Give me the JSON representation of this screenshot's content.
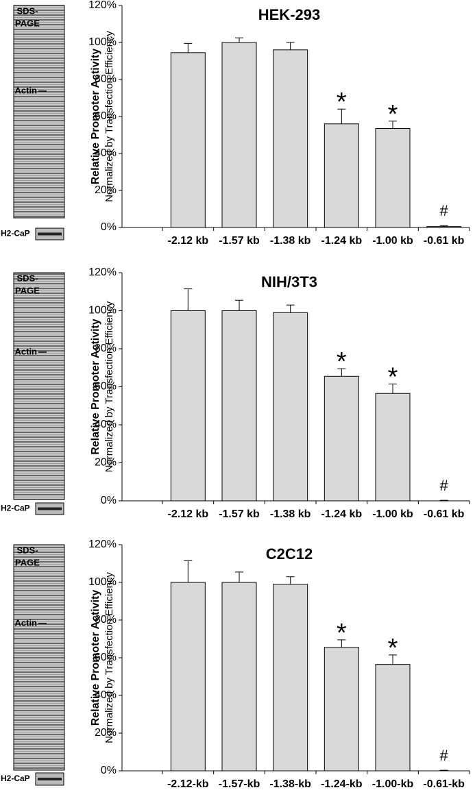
{
  "chart_data": [
    {
      "type": "bar",
      "title": "HEK-293",
      "ylabel": "Relative Promoter Activity",
      "ylabel_sub": "Normalized by Transfection Efficiency",
      "gel_labels": [
        "SDS-",
        "PAGE",
        "Actin",
        "H2-CaP"
      ],
      "categories": [
        "-2.12 kb",
        "-1.57 kb",
        "-1.38 kb",
        "-1.24 kb",
        "-1.00 kb",
        "-0.61 kb"
      ],
      "values": [
        94.5,
        100,
        96,
        56,
        53.5,
        0.5
      ],
      "errors": [
        5,
        2.5,
        4,
        8,
        4,
        0.5
      ],
      "color": "#d9d9d9",
      "annotations": [
        {
          "text": "*",
          "category": "-1.24 kb"
        },
        {
          "text": "*",
          "category": "-1.00 kb"
        },
        {
          "text": "#",
          "category": "-0.61 kb"
        }
      ],
      "ylim": [
        0,
        120
      ],
      "yticks": [
        {
          "value": 0,
          "label": "0%"
        },
        {
          "value": 20,
          "label": "20%"
        },
        {
          "value": 40,
          "label": "40%"
        },
        {
          "value": 60,
          "label": "60%"
        },
        {
          "value": 80,
          "label": "80%"
        },
        {
          "value": 100,
          "label": "100%"
        },
        {
          "value": 120,
          "label": "120%"
        }
      ]
    },
    {
      "type": "bar",
      "title": "NIH/3T3",
      "ylabel": "Relative Promoter Activity",
      "ylabel_sub": "Normalized by Transfection Efficiency",
      "gel_labels": [
        "SDS-",
        "PAGE",
        "Actin",
        "H2-CaP"
      ],
      "categories": [
        "-2.12 kb",
        "-1.57 kb",
        "-1.38 kb",
        "-1.24 kb",
        "-1.00 kb",
        "-0.61 kb"
      ],
      "values": [
        100,
        100,
        99,
        65.5,
        56.5,
        0
      ],
      "errors": [
        11.5,
        5.5,
        4,
        4,
        5,
        0.3
      ],
      "color": "#d9d9d9",
      "annotations": [
        {
          "text": "*",
          "category": "-1.24 kb"
        },
        {
          "text": "*",
          "category": "-1.00 kb"
        },
        {
          "text": "#",
          "category": "-0.61 kb"
        }
      ],
      "ylim": [
        0,
        120
      ],
      "yticks": [
        {
          "value": 0,
          "label": "0%"
        },
        {
          "value": 20,
          "label": "20%"
        },
        {
          "value": 40,
          "label": "40%"
        },
        {
          "value": 60,
          "label": "60%"
        },
        {
          "value": 80,
          "label": "80%"
        },
        {
          "value": 100,
          "label": "100%"
        },
        {
          "value": 120,
          "label": "120%"
        }
      ]
    },
    {
      "type": "bar",
      "title": "C2C12",
      "ylabel": "Relative Promoter Activity",
      "ylabel_sub": "Normalized by Transfection Efficiency",
      "gel_labels": [
        "SDS-",
        "PAGE",
        "Actin",
        "H2-CaP"
      ],
      "categories": [
        "-2.12-kb",
        "-1.57-kb",
        "-1.38-kb",
        "-1.24-kb",
        "-1.00-kb",
        "-0.61-kb"
      ],
      "values": [
        100,
        100,
        99,
        65.5,
        56.5,
        0
      ],
      "errors": [
        11.5,
        5.5,
        4,
        4,
        5,
        0.3
      ],
      "color": "#d9d9d9",
      "annotations": [
        {
          "text": "*",
          "category": "-1.24-kb"
        },
        {
          "text": "*",
          "category": "-1.00-kb"
        },
        {
          "text": "#",
          "category": "-0.61-kb"
        }
      ],
      "ylim": [
        0,
        120
      ],
      "yticks": [
        {
          "value": 0,
          "label": "0%"
        },
        {
          "value": 20,
          "label": "20%"
        },
        {
          "value": 40,
          "label": "40%"
        },
        {
          "value": 60,
          "label": "60%"
        },
        {
          "value": 80,
          "label": "80%"
        },
        {
          "value": 100,
          "label": "100%"
        },
        {
          "value": 120,
          "label": "120%"
        }
      ]
    }
  ]
}
